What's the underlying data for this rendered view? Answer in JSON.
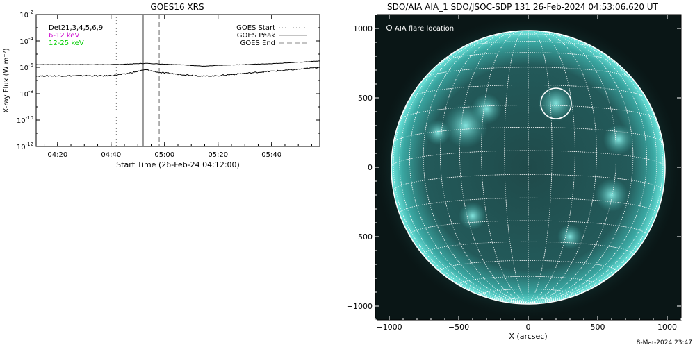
{
  "footer_timestamp": "8-Mar-2024 23:47",
  "chart_data": [
    {
      "type": "line",
      "title": "GOES16 XRS",
      "xlabel": "Start Time (26-Feb-24 04:12:00)",
      "ylabel": "X-ray Flux (W m⁻²)",
      "xlim": [
        "04:12",
        "05:58"
      ],
      "ylim": [
        1e-12,
        0.01
      ],
      "yscale": "log",
      "x_ticks": [
        "04:20",
        "04:40",
        "05:00",
        "05:20",
        "05:40"
      ],
      "y_ticks": [
        {
          "base": "10",
          "exp": "-2"
        },
        {
          "base": "10",
          "exp": "-4"
        },
        {
          "base": "10",
          "exp": "-6"
        },
        {
          "base": "10",
          "exp": "-8"
        },
        {
          "base": "10",
          "exp": "-10"
        },
        {
          "base": "10",
          "exp": "-12"
        }
      ],
      "left_legend": [
        {
          "label": "Det21,3,4,5,6,9",
          "color": "#000000"
        },
        {
          "label": "6-12 keV",
          "color": "#cc00cc"
        },
        {
          "label": "12-25 keV",
          "color": "#00cc00"
        }
      ],
      "markers": [
        {
          "label": "GOES Start",
          "time": "04:42",
          "style": "dotted"
        },
        {
          "label": "GOES Peak",
          "time": "04:52",
          "style": "solid"
        },
        {
          "label": "GOES End",
          "time": "04:58",
          "style": "dashed"
        }
      ],
      "series": [
        {
          "color": "#000000",
          "x": [
            "04:12",
            "04:20",
            "04:30",
            "04:40",
            "04:45",
            "04:50",
            "04:53",
            "04:58",
            "05:05",
            "05:10",
            "05:15",
            "05:20",
            "05:30",
            "05:40",
            "05:50",
            "05:58"
          ],
          "values": [
            1.6e-06,
            1.6e-06,
            1.6e-06,
            1.6e-06,
            1.7e-06,
            1.9e-06,
            2e-06,
            1.8e-06,
            1.6e-06,
            1.4e-06,
            1.2e-06,
            1.4e-06,
            1.6e-06,
            1.9e-06,
            2.4e-06,
            3e-06
          ]
        },
        {
          "color": "#000000",
          "x": [
            "04:12",
            "04:20",
            "04:30",
            "04:38",
            "04:45",
            "04:50",
            "04:53",
            "04:58",
            "05:05",
            "05:10",
            "05:15",
            "05:20",
            "05:30",
            "05:40",
            "05:50",
            "05:58"
          ],
          "values": [
            2.2e-07,
            2.2e-07,
            2.3e-07,
            2.2e-07,
            3e-07,
            5e-07,
            6.5e-07,
            4e-07,
            3e-07,
            2.5e-07,
            2.1e-07,
            2.3e-07,
            3.5e-07,
            5e-07,
            7e-07,
            1e-06
          ]
        }
      ]
    },
    {
      "type": "image",
      "title": "SDO/AIA AIA_1 SDO/JSOC-SDP 131 26-Feb-2024 04:53:06.620 UT",
      "xlabel": "X (arcsec)",
      "xlim": [
        -1100,
        1100
      ],
      "ylim": [
        -1100,
        1100
      ],
      "x_ticks": [
        "−1000",
        "−500",
        "0",
        "500",
        "1000"
      ],
      "y_ticks": [
        "1000",
        "500",
        "0",
        "−500",
        "−1000"
      ],
      "grid": true,
      "colormap": "teal",
      "legend": "AIA flare location",
      "flare_location": [
        200,
        460
      ],
      "flare_radius_arcsec": 110
    }
  ]
}
